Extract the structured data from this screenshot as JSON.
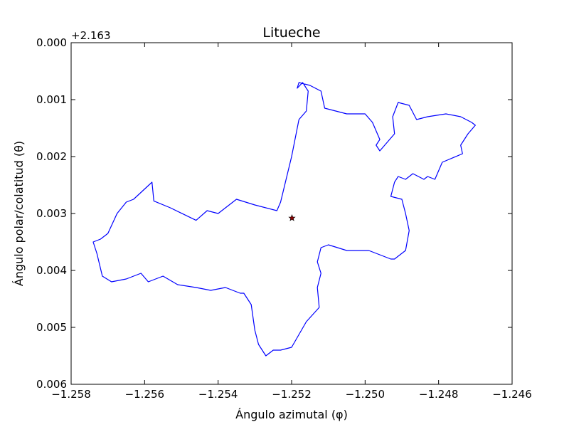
{
  "chart_data": {
    "type": "line",
    "title": "Litueche",
    "xlabel": "Ángulo azimutal (φ)",
    "ylabel": "Ángulo polar/colatitud (θ)",
    "y_offset_label": "+2.163",
    "xlim": [
      -1.258,
      -1.246
    ],
    "ylim": [
      0.006,
      0.0
    ],
    "y_inverted": true,
    "grid": false,
    "x_ticks": [
      -1.258,
      -1.256,
      -1.254,
      -1.252,
      -1.25,
      -1.248,
      -1.246
    ],
    "x_tick_labels": [
      "−1.258",
      "−1.256",
      "−1.254",
      "−1.252",
      "−1.250",
      "−1.248",
      "−1.246"
    ],
    "y_ticks": [
      0.0,
      0.001,
      0.002,
      0.003,
      0.004,
      0.005,
      0.006
    ],
    "y_tick_labels": [
      "0.000",
      "0.001",
      "0.002",
      "0.003",
      "0.004",
      "0.005",
      "0.006"
    ],
    "series": [
      {
        "kind": "boundary",
        "color": "#0000ff",
        "x": [
          -1.2518,
          -1.2516,
          -1.25155,
          -1.2517,
          -1.25185,
          -1.2518,
          -1.2515,
          -1.2512,
          -1.2511,
          -1.2505,
          -1.25,
          -1.2498,
          -1.2496,
          -1.2497,
          -1.2496,
          -1.2492,
          -1.24925,
          -1.2491,
          -1.2488,
          -1.2486,
          -1.2483,
          -1.2478,
          -1.2474,
          -1.2471,
          -1.247,
          -1.2472,
          -1.2474,
          -1.24735,
          -1.2479,
          -1.2481,
          -1.2483,
          -1.2484,
          -1.2487,
          -1.2489,
          -1.2491,
          -1.2492,
          -1.2493,
          -1.249,
          -1.2489,
          -1.2488,
          -1.2489,
          -1.2491,
          -1.2492,
          -1.2493,
          -1.2499,
          -1.2505,
          -1.251,
          -1.2512,
          -1.2513,
          -1.2512,
          -1.2513,
          -1.25125,
          -1.2516,
          -1.252,
          -1.2523,
          -1.2525,
          -1.2527,
          -1.2529,
          -1.253,
          -1.2531,
          -1.2533,
          -1.2534,
          -1.2538,
          -1.2542,
          -1.2546,
          -1.2551,
          -1.2555,
          -1.2559,
          -1.2561,
          -1.2565,
          -1.2569,
          -1.25715,
          -1.2573,
          -1.2574,
          -1.2572,
          -1.257,
          -1.25675,
          -1.2565,
          -1.2563,
          -1.2558,
          -1.25575,
          -1.2553,
          -1.2546,
          -1.2543,
          -1.254,
          -1.2535,
          -1.253,
          -1.2524,
          -1.2523,
          -1.252,
          -1.2518
        ],
        "y": [
          0.00135,
          0.0012,
          0.00085,
          0.0007,
          0.0008,
          0.0007,
          0.00075,
          0.00085,
          0.00115,
          0.00125,
          0.00125,
          0.0014,
          0.0017,
          0.0018,
          0.0019,
          0.0016,
          0.0013,
          0.00105,
          0.0011,
          0.00135,
          0.0013,
          0.00125,
          0.0013,
          0.0014,
          0.00145,
          0.0016,
          0.0018,
          0.00195,
          0.0021,
          0.0024,
          0.00235,
          0.0024,
          0.0023,
          0.0024,
          0.00235,
          0.00245,
          0.0027,
          0.00275,
          0.003,
          0.0033,
          0.00365,
          0.00375,
          0.0038,
          0.0038,
          0.00365,
          0.00365,
          0.00355,
          0.0036,
          0.00385,
          0.00405,
          0.0043,
          0.00465,
          0.0049,
          0.00535,
          0.0054,
          0.0054,
          0.0055,
          0.0053,
          0.00505,
          0.0046,
          0.0044,
          0.0044,
          0.0043,
          0.00435,
          0.0043,
          0.00425,
          0.0041,
          0.0042,
          0.00405,
          0.00415,
          0.0042,
          0.0041,
          0.0037,
          0.0035,
          0.00345,
          0.00335,
          0.003,
          0.0028,
          0.00275,
          0.00245,
          0.00278,
          0.0029,
          0.00312,
          0.00295,
          0.003,
          0.00275,
          0.00285,
          0.00295,
          0.0028,
          0.002,
          0.00135
        ]
      },
      {
        "kind": "marker",
        "marker": "star",
        "color": "#8b0000",
        "x": [
          -1.25199
        ],
        "y": [
          0.00308
        ]
      }
    ]
  }
}
